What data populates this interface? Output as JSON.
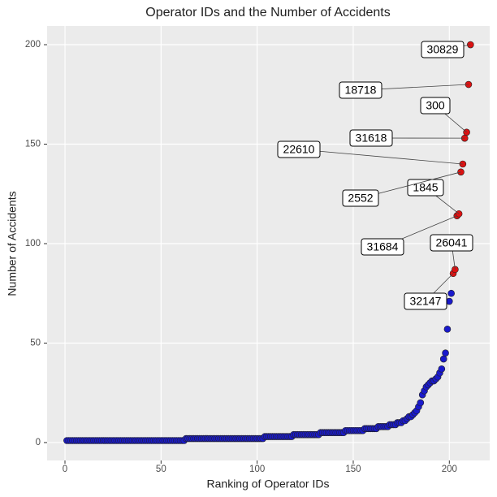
{
  "chart_data": {
    "type": "scatter",
    "title": "Operator IDs and the Number of Accidents",
    "x_label": "Ranking of Operator IDs",
    "y_label": "Number of Accidents",
    "xlim": [
      -9.3,
      221
    ],
    "ylim": [
      -9,
      209.4
    ],
    "xticks": [
      0,
      50,
      100,
      150,
      200
    ],
    "yticks": [
      0,
      50,
      100,
      150,
      200
    ],
    "grid": true,
    "series": [
      {
        "color": "#1a1acc",
        "x": [
          1,
          2,
          3,
          4,
          5,
          6,
          7,
          8,
          9,
          10,
          11,
          12,
          13,
          14,
          15,
          16,
          17,
          18,
          19,
          20,
          21,
          22,
          23,
          24,
          25,
          26,
          27,
          28,
          29,
          30,
          31,
          32,
          33,
          34,
          35,
          36,
          37,
          38,
          39,
          40,
          41,
          42,
          43,
          44,
          45,
          46,
          47,
          48,
          49,
          50,
          51,
          52,
          53,
          54,
          55,
          56,
          57,
          58,
          59,
          60,
          61,
          62,
          63,
          64,
          65,
          66,
          67,
          68,
          69,
          70,
          71,
          72,
          73,
          74,
          75,
          76,
          77,
          78,
          79,
          80,
          81,
          82,
          83,
          84,
          85,
          86,
          87,
          88,
          89,
          90,
          91,
          92,
          93,
          94,
          95,
          96,
          97,
          98,
          99,
          100,
          101,
          102,
          103,
          104,
          105,
          106,
          107,
          108,
          109,
          110,
          111,
          112,
          113,
          114,
          115,
          116,
          117,
          118,
          119,
          120,
          121,
          122,
          123,
          124,
          125,
          126,
          127,
          128,
          129,
          130,
          131,
          132,
          133,
          134,
          135,
          136,
          137,
          138,
          139,
          140,
          141,
          142,
          143,
          144,
          145,
          146,
          147,
          148,
          149,
          150,
          151,
          152,
          153,
          154,
          155,
          156,
          157,
          158,
          159,
          160,
          161,
          162,
          163,
          164,
          165,
          166,
          167,
          168,
          169,
          170,
          171,
          172,
          173,
          174,
          175,
          176,
          177,
          178,
          179,
          180,
          181,
          182,
          183,
          184,
          185,
          186,
          187,
          188,
          189,
          190,
          191,
          192,
          193,
          194,
          195,
          196,
          197,
          198,
          199,
          200,
          201
        ],
        "values": [
          1,
          1,
          1,
          1,
          1,
          1,
          1,
          1,
          1,
          1,
          1,
          1,
          1,
          1,
          1,
          1,
          1,
          1,
          1,
          1,
          1,
          1,
          1,
          1,
          1,
          1,
          1,
          1,
          1,
          1,
          1,
          1,
          1,
          1,
          1,
          1,
          1,
          1,
          1,
          1,
          1,
          1,
          1,
          1,
          1,
          1,
          1,
          1,
          1,
          1,
          1,
          1,
          1,
          1,
          1,
          1,
          1,
          1,
          1,
          1,
          1,
          1,
          2,
          2,
          2,
          2,
          2,
          2,
          2,
          2,
          2,
          2,
          2,
          2,
          2,
          2,
          2,
          2,
          2,
          2,
          2,
          2,
          2,
          2,
          2,
          2,
          2,
          2,
          2,
          2,
          2,
          2,
          2,
          2,
          2,
          2,
          2,
          2,
          2,
          2,
          2,
          2,
          2,
          3,
          3,
          3,
          3,
          3,
          3,
          3,
          3,
          3,
          3,
          3,
          3,
          3,
          3,
          3,
          4,
          4,
          4,
          4,
          4,
          4,
          4,
          4,
          4,
          4,
          4,
          4,
          4,
          4,
          5,
          5,
          5,
          5,
          5,
          5,
          5,
          5,
          5,
          5,
          5,
          5,
          5,
          6,
          6,
          6,
          6,
          6,
          6,
          6,
          6,
          6,
          6,
          7,
          7,
          7,
          7,
          7,
          7,
          7,
          8,
          8,
          8,
          8,
          8,
          8,
          9,
          9,
          9,
          9,
          10,
          10,
          10,
          11,
          11,
          12,
          13,
          13,
          14,
          15,
          16,
          18,
          20,
          24,
          26,
          28,
          29,
          30,
          31,
          31,
          32,
          33,
          35,
          37,
          42,
          45,
          57,
          71,
          75
        ]
      },
      {
        "color": "#dd1111",
        "x": [
          202,
          203,
          204,
          205,
          206,
          207,
          208,
          209,
          210,
          211
        ],
        "values": [
          85,
          87,
          114,
          115,
          136,
          140,
          153,
          156,
          180,
          200
        ],
        "point_labels": [
          "32147",
          "26041",
          "31684",
          "1845",
          "2552",
          "22610",
          "31618",
          "300",
          "18718",
          "30829"
        ]
      }
    ]
  }
}
